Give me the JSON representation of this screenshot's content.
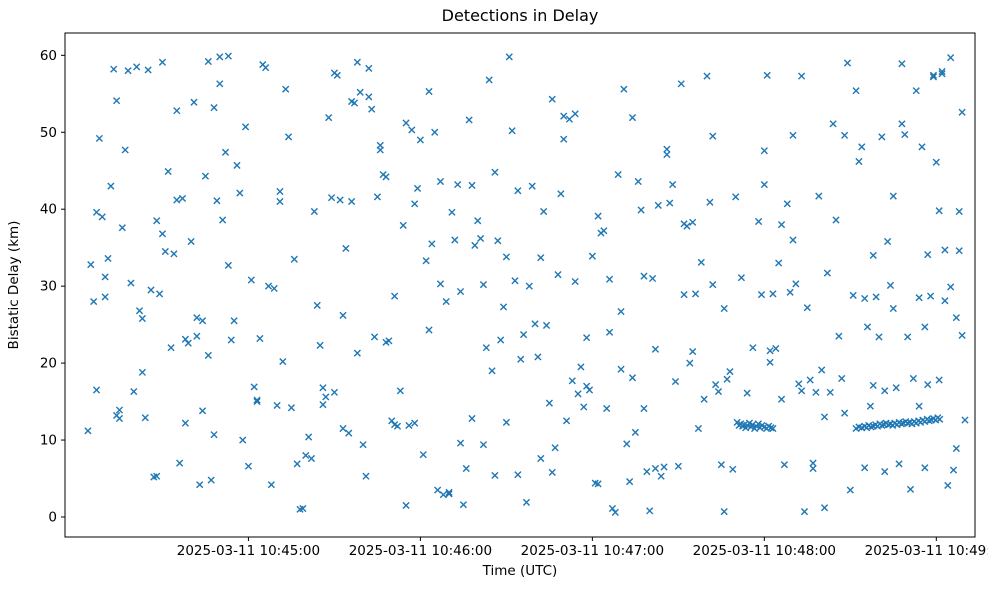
{
  "page": {
    "title": "Detections in Delay"
  },
  "chart_data": {
    "type": "scatter",
    "title": "Detections in Delay",
    "xlabel": "Time (UTC)",
    "ylabel": "Bistatic Delay (km)",
    "marker": "x",
    "marker_color": "#1f77b4",
    "grid": false,
    "legend": "none",
    "time_origin_label": "2025-03-11 10:44:00",
    "x_domain_seconds": [
      -4,
      313.5
    ],
    "y_domain": [
      -2.6,
      62.9
    ],
    "x_ticks": [
      {
        "t": 60,
        "label": "2025-03-11 10:45:00"
      },
      {
        "t": 120,
        "label": "2025-03-11 10:46:00"
      },
      {
        "t": 180,
        "label": "2025-03-11 10:47:00"
      },
      {
        "t": 240,
        "label": "2025-03-11 10:48:00"
      },
      {
        "t": 300,
        "label": "2025-03-11 10:49:00"
      }
    ],
    "y_ticks": [
      0,
      10,
      20,
      30,
      40,
      50,
      60
    ],
    "points": [
      [
        4,
        11.2
      ],
      [
        5,
        32.8
      ],
      [
        6,
        28.0
      ],
      [
        7,
        39.6
      ],
      [
        7,
        16.5
      ],
      [
        8,
        49.2
      ],
      [
        9,
        39.0
      ],
      [
        10,
        31.2
      ],
      [
        10,
        28.6
      ],
      [
        11,
        33.6
      ],
      [
        12,
        43.0
      ],
      [
        13,
        58.2
      ],
      [
        14,
        54.1
      ],
      [
        14,
        13.2
      ],
      [
        15,
        12.8
      ],
      [
        15,
        13.9
      ],
      [
        16,
        37.6
      ],
      [
        17,
        47.7
      ],
      [
        18,
        58.0
      ],
      [
        19,
        30.4
      ],
      [
        20,
        16.3
      ],
      [
        21,
        58.5
      ],
      [
        22,
        26.8
      ],
      [
        23,
        18.8
      ],
      [
        23,
        25.8
      ],
      [
        24,
        12.9
      ],
      [
        25,
        58.1
      ],
      [
        26,
        29.5
      ],
      [
        27,
        5.2
      ],
      [
        28,
        5.3
      ],
      [
        28,
        38.5
      ],
      [
        29,
        29.0
      ],
      [
        30,
        59.1
      ],
      [
        30,
        36.8
      ],
      [
        31,
        34.5
      ],
      [
        32,
        44.9
      ],
      [
        33,
        22.0
      ],
      [
        34,
        34.2
      ],
      [
        35,
        52.8
      ],
      [
        35,
        41.2
      ],
      [
        36,
        7.0
      ],
      [
        37,
        41.4
      ],
      [
        38,
        23.1
      ],
      [
        38,
        12.2
      ],
      [
        39,
        22.6
      ],
      [
        40,
        35.8
      ],
      [
        41,
        53.9
      ],
      [
        42,
        25.9
      ],
      [
        42,
        23.5
      ],
      [
        43,
        4.2
      ],
      [
        44,
        13.8
      ],
      [
        44,
        25.5
      ],
      [
        45,
        44.3
      ],
      [
        46,
        59.2
      ],
      [
        46,
        21.0
      ],
      [
        47,
        4.8
      ],
      [
        48,
        10.7
      ],
      [
        48,
        53.2
      ],
      [
        49,
        41.1
      ],
      [
        50,
        59.8
      ],
      [
        50,
        56.3
      ],
      [
        51,
        38.6
      ],
      [
        52,
        47.4
      ],
      [
        53,
        59.9
      ],
      [
        53,
        32.7
      ],
      [
        54,
        23.0
      ],
      [
        55,
        25.5
      ],
      [
        56,
        45.7
      ],
      [
        57,
        42.1
      ],
      [
        58,
        10.0
      ],
      [
        59,
        50.7
      ],
      [
        60,
        6.6
      ],
      [
        61,
        30.8
      ],
      [
        62,
        16.9
      ],
      [
        63,
        15.2
      ],
      [
        63,
        15.0
      ],
      [
        64,
        23.2
      ],
      [
        65,
        58.8
      ],
      [
        66,
        58.4
      ],
      [
        67,
        30.0
      ],
      [
        68,
        4.2
      ],
      [
        69,
        29.7
      ],
      [
        70,
        14.5
      ],
      [
        71,
        42.3
      ],
      [
        71,
        41.0
      ],
      [
        72,
        20.2
      ],
      [
        73,
        55.6
      ],
      [
        74,
        49.4
      ],
      [
        75,
        14.2
      ],
      [
        76,
        33.5
      ],
      [
        77,
        6.9
      ],
      [
        78,
        1.0
      ],
      [
        79,
        1.1
      ],
      [
        80,
        8.0
      ],
      [
        81,
        10.4
      ],
      [
        82,
        7.6
      ],
      [
        83,
        39.7
      ],
      [
        84,
        27.5
      ],
      [
        85,
        22.3
      ],
      [
        86,
        16.8
      ],
      [
        86,
        14.6
      ],
      [
        87,
        15.6
      ],
      [
        88,
        51.9
      ],
      [
        89,
        41.5
      ],
      [
        90,
        16.2
      ],
      [
        90,
        57.7
      ],
      [
        91,
        57.4
      ],
      [
        92,
        41.2
      ],
      [
        93,
        11.5
      ],
      [
        93,
        26.2
      ],
      [
        94,
        34.9
      ],
      [
        95,
        10.9
      ],
      [
        96,
        41.0
      ],
      [
        96,
        54.0
      ],
      [
        97,
        53.8
      ],
      [
        98,
        59.1
      ],
      [
        98,
        21.3
      ],
      [
        99,
        55.2
      ],
      [
        100,
        9.4
      ],
      [
        101,
        5.3
      ],
      [
        102,
        54.6
      ],
      [
        102,
        58.3
      ],
      [
        103,
        53.0
      ],
      [
        104,
        23.4
      ],
      [
        105,
        41.6
      ],
      [
        106,
        48.3
      ],
      [
        106,
        47.7
      ],
      [
        107,
        44.5
      ],
      [
        108,
        44.2
      ],
      [
        108,
        22.7
      ],
      [
        109,
        22.9
      ],
      [
        110,
        12.5
      ],
      [
        111,
        12.0
      ],
      [
        111,
        28.7
      ],
      [
        112,
        11.8
      ],
      [
        113,
        16.4
      ],
      [
        114,
        37.9
      ],
      [
        115,
        51.2
      ],
      [
        115,
        1.5
      ],
      [
        116,
        11.9
      ],
      [
        117,
        50.3
      ],
      [
        118,
        12.2
      ],
      [
        118,
        40.7
      ],
      [
        119,
        42.7
      ],
      [
        120,
        49.0
      ],
      [
        121,
        8.1
      ],
      [
        122,
        33.3
      ],
      [
        123,
        24.3
      ],
      [
        123,
        55.3
      ],
      [
        124,
        35.5
      ],
      [
        125,
        50.0
      ],
      [
        126,
        3.5
      ],
      [
        127,
        43.6
      ],
      [
        127,
        30.3
      ],
      [
        128,
        2.9
      ],
      [
        129,
        28.0
      ],
      [
        130,
        3.2
      ],
      [
        130,
        3.0
      ],
      [
        131,
        39.6
      ],
      [
        132,
        36.0
      ],
      [
        133,
        43.2
      ],
      [
        134,
        29.3
      ],
      [
        134,
        9.6
      ],
      [
        135,
        1.6
      ],
      [
        136,
        6.3
      ],
      [
        137,
        51.6
      ],
      [
        138,
        43.1
      ],
      [
        138,
        12.8
      ],
      [
        139,
        35.3
      ],
      [
        140,
        38.5
      ],
      [
        141,
        36.2
      ],
      [
        142,
        30.2
      ],
      [
        142,
        9.4
      ],
      [
        143,
        22.0
      ],
      [
        144,
        56.8
      ],
      [
        145,
        19.0
      ],
      [
        146,
        44.8
      ],
      [
        146,
        5.4
      ],
      [
        147,
        35.9
      ],
      [
        148,
        23.0
      ],
      [
        149,
        27.3
      ],
      [
        150,
        33.8
      ],
      [
        150,
        12.3
      ],
      [
        151,
        59.8
      ],
      [
        152,
        50.2
      ],
      [
        153,
        30.7
      ],
      [
        154,
        5.5
      ],
      [
        154,
        42.4
      ],
      [
        155,
        20.5
      ],
      [
        156,
        23.7
      ],
      [
        157,
        1.9
      ],
      [
        158,
        30.0
      ],
      [
        159,
        43.0
      ],
      [
        160,
        25.1
      ],
      [
        161,
        20.8
      ],
      [
        162,
        7.6
      ],
      [
        162,
        33.7
      ],
      [
        163,
        39.7
      ],
      [
        164,
        24.9
      ],
      [
        165,
        14.8
      ],
      [
        166,
        54.3
      ],
      [
        166,
        5.8
      ],
      [
        167,
        9.0
      ],
      [
        168,
        31.5
      ],
      [
        169,
        42.0
      ],
      [
        170,
        52.1
      ],
      [
        170,
        49.1
      ],
      [
        171,
        12.5
      ],
      [
        172,
        51.7
      ],
      [
        173,
        17.7
      ],
      [
        174,
        30.6
      ],
      [
        174,
        52.4
      ],
      [
        175,
        16.0
      ],
      [
        176,
        19.5
      ],
      [
        177,
        14.3
      ],
      [
        178,
        23.3
      ],
      [
        178,
        17.0
      ],
      [
        179,
        16.5
      ],
      [
        180,
        33.9
      ],
      [
        181,
        4.4
      ],
      [
        182,
        4.3
      ],
      [
        182,
        39.1
      ],
      [
        183,
        36.9
      ],
      [
        184,
        37.2
      ],
      [
        185,
        14.1
      ],
      [
        186,
        24.0
      ],
      [
        186,
        30.9
      ],
      [
        187,
        1.1
      ],
      [
        188,
        0.6
      ],
      [
        189,
        44.5
      ],
      [
        190,
        19.2
      ],
      [
        190,
        26.7
      ],
      [
        191,
        55.6
      ],
      [
        192,
        9.5
      ],
      [
        193,
        4.6
      ],
      [
        194,
        51.9
      ],
      [
        194,
        18.1
      ],
      [
        195,
        11.0
      ],
      [
        196,
        43.6
      ],
      [
        197,
        39.9
      ],
      [
        198,
        31.3
      ],
      [
        198,
        14.1
      ],
      [
        199,
        5.9
      ],
      [
        200,
        0.8
      ],
      [
        201,
        31.0
      ],
      [
        202,
        21.8
      ],
      [
        202,
        6.3
      ],
      [
        203,
        40.5
      ],
      [
        204,
        5.3
      ],
      [
        205,
        6.5
      ],
      [
        206,
        47.8
      ],
      [
        206,
        47.1
      ],
      [
        207,
        40.8
      ],
      [
        208,
        43.2
      ],
      [
        209,
        17.6
      ],
      [
        210,
        6.6
      ],
      [
        211,
        56.3
      ],
      [
        212,
        38.1
      ],
      [
        212,
        28.9
      ],
      [
        213,
        37.8
      ],
      [
        214,
        20.0
      ],
      [
        215,
        21.5
      ],
      [
        215,
        38.3
      ],
      [
        216,
        29.0
      ],
      [
        217,
        11.5
      ],
      [
        218,
        33.1
      ],
      [
        219,
        15.3
      ],
      [
        220,
        57.3
      ],
      [
        221,
        40.9
      ],
      [
        222,
        30.2
      ],
      [
        222,
        49.5
      ],
      [
        223,
        17.2
      ],
      [
        224,
        16.3
      ],
      [
        225,
        6.8
      ],
      [
        226,
        0.7
      ],
      [
        226,
        27.1
      ],
      [
        227,
        17.9
      ],
      [
        228,
        18.9
      ],
      [
        229,
        6.2
      ],
      [
        230,
        41.6
      ],
      [
        232,
        31.1
      ],
      [
        234,
        16.1
      ],
      [
        236,
        22.0
      ],
      [
        238,
        38.4
      ],
      [
        239,
        28.9
      ],
      [
        240,
        47.6
      ],
      [
        240,
        43.2
      ],
      [
        241,
        57.4
      ],
      [
        242,
        21.6
      ],
      [
        242,
        20.1
      ],
      [
        243,
        29.0
      ],
      [
        244,
        21.9
      ],
      [
        245,
        33.0
      ],
      [
        246,
        38.0
      ],
      [
        246,
        15.3
      ],
      [
        247,
        6.8
      ],
      [
        248,
        40.7
      ],
      [
        249,
        29.2
      ],
      [
        250,
        36.0
      ],
      [
        250,
        49.6
      ],
      [
        251,
        30.3
      ],
      [
        252,
        17.3
      ],
      [
        253,
        16.4
      ],
      [
        253,
        57.3
      ],
      [
        254,
        0.7
      ],
      [
        255,
        27.2
      ],
      [
        256,
        17.8
      ],
      [
        257,
        7.0
      ],
      [
        257,
        6.3
      ],
      [
        258,
        16.2
      ],
      [
        259,
        41.7
      ],
      [
        260,
        19.1
      ],
      [
        261,
        13.0
      ],
      [
        261,
        1.2
      ],
      [
        262,
        31.7
      ],
      [
        263,
        16.2
      ],
      [
        264,
        51.1
      ],
      [
        265,
        38.6
      ],
      [
        266,
        23.5
      ],
      [
        267,
        18.0
      ],
      [
        268,
        13.5
      ],
      [
        268,
        49.6
      ],
      [
        269,
        59.0
      ],
      [
        270,
        3.5
      ],
      [
        271,
        28.8
      ],
      [
        272,
        55.4
      ],
      [
        273,
        46.2
      ],
      [
        274,
        48.1
      ],
      [
        275,
        28.4
      ],
      [
        275,
        6.4
      ],
      [
        276,
        24.7
      ],
      [
        277,
        14.4
      ],
      [
        278,
        34.0
      ],
      [
        278,
        17.1
      ],
      [
        279,
        28.6
      ],
      [
        280,
        23.4
      ],
      [
        281,
        49.4
      ],
      [
        282,
        5.9
      ],
      [
        282,
        16.4
      ],
      [
        283,
        35.8
      ],
      [
        284,
        30.1
      ],
      [
        285,
        41.7
      ],
      [
        285,
        27.1
      ],
      [
        286,
        16.8
      ],
      [
        287,
        6.9
      ],
      [
        288,
        58.9
      ],
      [
        288,
        51.1
      ],
      [
        289,
        49.7
      ],
      [
        290,
        23.4
      ],
      [
        291,
        3.6
      ],
      [
        292,
        18.0
      ],
      [
        293,
        55.4
      ],
      [
        294,
        28.5
      ],
      [
        294,
        14.4
      ],
      [
        295,
        48.1
      ],
      [
        296,
        6.4
      ],
      [
        296,
        24.7
      ],
      [
        297,
        34.1
      ],
      [
        297,
        17.2
      ],
      [
        298,
        28.7
      ],
      [
        299,
        57.4
      ],
      [
        299,
        57.2
      ],
      [
        300,
        46.1
      ],
      [
        301,
        17.8
      ],
      [
        301,
        39.8
      ],
      [
        302,
        57.9
      ],
      [
        302,
        57.6
      ],
      [
        303,
        28.1
      ],
      [
        303,
        34.7
      ],
      [
        304,
        4.1
      ],
      [
        305,
        59.7
      ],
      [
        305,
        29.9
      ],
      [
        306,
        6.1
      ],
      [
        307,
        8.9
      ],
      [
        307,
        25.9
      ],
      [
        308,
        39.7
      ],
      [
        308,
        34.6
      ],
      [
        309,
        52.6
      ],
      [
        309,
        23.6
      ],
      [
        310,
        12.6
      ],
      [
        230.5,
        12.3
      ],
      [
        231.2,
        11.9
      ],
      [
        231.8,
        12.1
      ],
      [
        232.4,
        11.8
      ],
      [
        233.0,
        12.0
      ],
      [
        233.5,
        11.6
      ],
      [
        234.1,
        11.9
      ],
      [
        234.8,
        12.2
      ],
      [
        235.3,
        11.7
      ],
      [
        235.9,
        12.0
      ],
      [
        236.6,
        11.5
      ],
      [
        237.2,
        11.8
      ],
      [
        237.9,
        12.1
      ],
      [
        238.5,
        11.6
      ],
      [
        239.2,
        11.9
      ],
      [
        240.0,
        11.7
      ],
      [
        240.8,
        11.5
      ],
      [
        241.5,
        11.8
      ],
      [
        242.3,
        11.6
      ],
      [
        243.0,
        11.5
      ],
      [
        272,
        11.5
      ],
      [
        273,
        11.7
      ],
      [
        274,
        11.6
      ],
      [
        275,
        11.8
      ],
      [
        275.7,
        11.6
      ],
      [
        276.4,
        11.9
      ],
      [
        277.2,
        11.7
      ],
      [
        278,
        11.8
      ],
      [
        278.8,
        12.0
      ],
      [
        279.5,
        11.8
      ],
      [
        280.3,
        12.1
      ],
      [
        281,
        11.9
      ],
      [
        281.8,
        12.0
      ],
      [
        282.5,
        12.2
      ],
      [
        283.3,
        12.0
      ],
      [
        284,
        12.1
      ],
      [
        284.8,
        11.9
      ],
      [
        285.5,
        12.2
      ],
      [
        286.3,
        12.0
      ],
      [
        287,
        12.3
      ],
      [
        287.8,
        12.1
      ],
      [
        288.5,
        12.2
      ],
      [
        289.3,
        12.4
      ],
      [
        290,
        12.2
      ],
      [
        290.8,
        12.3
      ],
      [
        291.5,
        12.1
      ],
      [
        292.3,
        12.4
      ],
      [
        293,
        12.2
      ],
      [
        293.8,
        12.5
      ],
      [
        294.5,
        12.3
      ],
      [
        295.3,
        12.6
      ],
      [
        296,
        12.4
      ],
      [
        296.8,
        12.7
      ],
      [
        297.5,
        12.5
      ],
      [
        298.3,
        12.6
      ],
      [
        299,
        12.8
      ],
      [
        299.8,
        12.6
      ],
      [
        300.5,
        12.9
      ],
      [
        301.2,
        12.7
      ]
    ]
  }
}
